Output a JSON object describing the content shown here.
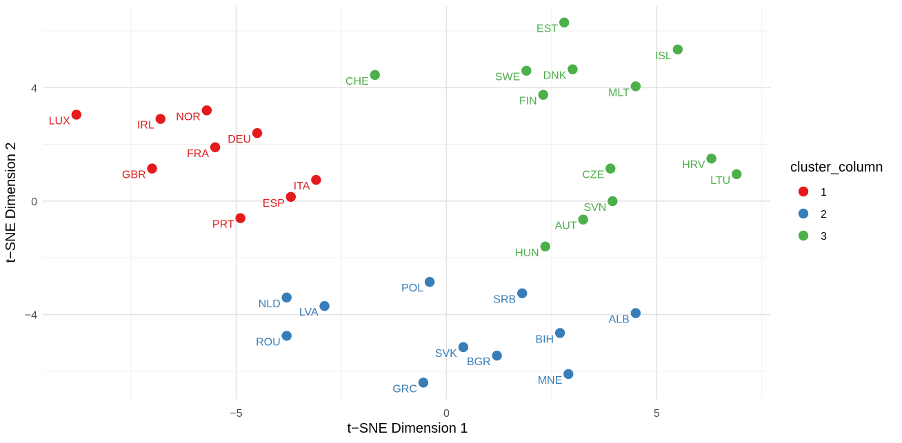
{
  "chart_data": {
    "type": "scatter",
    "title": "",
    "xlabel": "t−SNE Dimension 1",
    "ylabel": "t−SNE Dimension 2",
    "xlim": [
      -9.6,
      7.7
    ],
    "ylim": [
      -7.0,
      6.9
    ],
    "x_ticks": [
      -5,
      0,
      5
    ],
    "y_ticks": [
      -4,
      0,
      4
    ],
    "x_tick_labels": [
      "−5",
      "0",
      "5"
    ],
    "y_tick_labels": [
      "−4",
      "0",
      "4"
    ],
    "grid": true,
    "legend": {
      "title": "cluster_column",
      "placement": "right",
      "entries": [
        {
          "label": "1",
          "color": "#e41a1c"
        },
        {
          "label": "2",
          "color": "#377eb8"
        },
        {
          "label": "3",
          "color": "#4daf4a"
        }
      ]
    },
    "series": [
      {
        "name": "1",
        "color": "#e41a1c",
        "points": [
          {
            "label": "LUX",
            "x": -8.8,
            "y": 3.05
          },
          {
            "label": "IRL",
            "x": -6.8,
            "y": 2.9
          },
          {
            "label": "NOR",
            "x": -5.7,
            "y": 3.2
          },
          {
            "label": "DEU",
            "x": -4.5,
            "y": 2.4
          },
          {
            "label": "FRA",
            "x": -5.5,
            "y": 1.9
          },
          {
            "label": "GBR",
            "x": -7.0,
            "y": 1.15
          },
          {
            "label": "ITA",
            "x": -3.1,
            "y": 0.75
          },
          {
            "label": "ESP",
            "x": -3.7,
            "y": 0.15
          },
          {
            "label": "PRT",
            "x": -4.9,
            "y": -0.6
          }
        ]
      },
      {
        "name": "2",
        "color": "#377eb8",
        "points": [
          {
            "label": "POL",
            "x": -0.4,
            "y": -2.85
          },
          {
            "label": "SRB",
            "x": 1.8,
            "y": -3.25
          },
          {
            "label": "NLD",
            "x": -3.8,
            "y": -3.4
          },
          {
            "label": "LVA",
            "x": -2.9,
            "y": -3.7
          },
          {
            "label": "ALB",
            "x": 4.5,
            "y": -3.95
          },
          {
            "label": "BIH",
            "x": 2.7,
            "y": -4.65
          },
          {
            "label": "ROU",
            "x": -3.8,
            "y": -4.75
          },
          {
            "label": "SVK",
            "x": 0.4,
            "y": -5.15
          },
          {
            "label": "BGR",
            "x": 1.2,
            "y": -5.45
          },
          {
            "label": "MNE",
            "x": 2.9,
            "y": -6.1
          },
          {
            "label": "GRC",
            "x": -0.55,
            "y": -6.4
          }
        ]
      },
      {
        "name": "3",
        "color": "#4daf4a",
        "points": [
          {
            "label": "EST",
            "x": 2.8,
            "y": 6.3
          },
          {
            "label": "ISL",
            "x": 5.5,
            "y": 5.35
          },
          {
            "label": "DNK",
            "x": 3.0,
            "y": 4.65
          },
          {
            "label": "SWE",
            "x": 1.9,
            "y": 4.6
          },
          {
            "label": "CHE",
            "x": -1.7,
            "y": 4.45
          },
          {
            "label": "MLT",
            "x": 4.5,
            "y": 4.05
          },
          {
            "label": "FIN",
            "x": 2.3,
            "y": 3.75
          },
          {
            "label": "HRV",
            "x": 6.3,
            "y": 1.5
          },
          {
            "label": "CZE",
            "x": 3.9,
            "y": 1.15
          },
          {
            "label": "LTU",
            "x": 6.9,
            "y": 0.95
          },
          {
            "label": "SVN",
            "x": 3.95,
            "y": 0.0
          },
          {
            "label": "AUT",
            "x": 3.25,
            "y": -0.65
          },
          {
            "label": "HUN",
            "x": 2.35,
            "y": -1.6
          }
        ]
      }
    ]
  }
}
